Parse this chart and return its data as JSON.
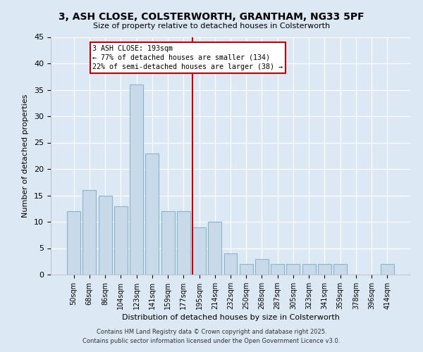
{
  "title": "3, ASH CLOSE, COLSTERWORTH, GRANTHAM, NG33 5PF",
  "subtitle": "Size of property relative to detached houses in Colsterworth",
  "xlabel": "Distribution of detached houses by size in Colsterworth",
  "ylabel": "Number of detached properties",
  "bar_labels": [
    "50sqm",
    "68sqm",
    "86sqm",
    "104sqm",
    "123sqm",
    "141sqm",
    "159sqm",
    "177sqm",
    "195sqm",
    "214sqm",
    "232sqm",
    "250sqm",
    "268sqm",
    "287sqm",
    "305sqm",
    "323sqm",
    "341sqm",
    "359sqm",
    "378sqm",
    "396sqm",
    "414sqm"
  ],
  "bar_values": [
    12,
    16,
    15,
    13,
    36,
    23,
    12,
    12,
    9,
    10,
    4,
    2,
    3,
    2,
    2,
    2,
    2,
    2,
    0,
    0,
    2
  ],
  "bar_color": "#c8daea",
  "bar_edgecolor": "#8ab4cc",
  "vline_color": "#cc0000",
  "annotation_title": "3 ASH CLOSE: 193sqm",
  "annotation_line1": "← 77% of detached houses are smaller (134)",
  "annotation_line2": "22% of semi-detached houses are larger (38) →",
  "annotation_box_facecolor": "#ffffff",
  "annotation_box_edgecolor": "#cc0000",
  "ylim": [
    0,
    45
  ],
  "yticks": [
    0,
    5,
    10,
    15,
    20,
    25,
    30,
    35,
    40,
    45
  ],
  "background_color": "#dce8f4",
  "plot_bg_color": "#dce8f4",
  "grid_color": "#ffffff",
  "footer1": "Contains HM Land Registry data © Crown copyright and database right 2025.",
  "footer2": "Contains public sector information licensed under the Open Government Licence v3.0."
}
